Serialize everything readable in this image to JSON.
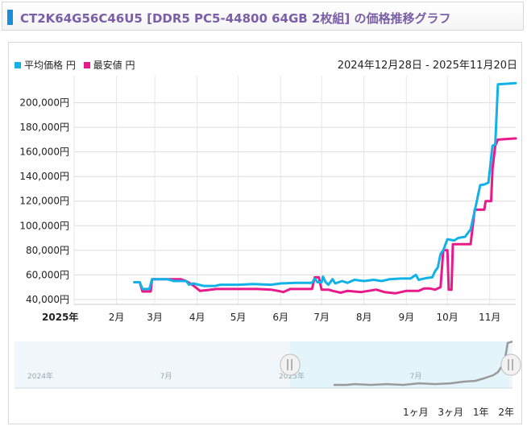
{
  "header": {
    "title": "CT2K64G56C46U5 [DDR5 PC5-44800 64GB 2枚組] の価格推移グラフ"
  },
  "legend": {
    "items": [
      {
        "label": "平均価格 円",
        "color": "#12b2e8"
      },
      {
        "label": "最安値 円",
        "color": "#e8198a"
      }
    ]
  },
  "date_range": "2024年12月28日 - 2025年11月20日",
  "range_buttons": [
    "1ヶ月",
    "3ヶ月",
    "1年",
    "2年"
  ],
  "navigator": {
    "labels": [
      "2024年",
      "7月",
      "2025年",
      "7月"
    ],
    "line_color": "#9a9a9a",
    "selection_color": "#e3f4fb"
  },
  "chart_data": {
    "type": "line",
    "ylim": [
      36000,
      222000
    ],
    "yticks": [
      40000,
      60000,
      80000,
      100000,
      120000,
      140000,
      160000,
      180000,
      200000
    ],
    "ytick_labels": [
      "40,000円",
      "60,000円",
      "80,000円",
      "100,000円",
      "120,000円",
      "140,000円",
      "160,000円",
      "180,000円",
      "200,000円"
    ],
    "xlim": [
      "2025-01-01",
      "2025-11-20"
    ],
    "xticks": [
      {
        "label": "2025年",
        "date": "2025-01-01",
        "bold": true
      },
      {
        "label": "2月",
        "date": "2025-02-01"
      },
      {
        "label": "3月",
        "date": "2025-03-01"
      },
      {
        "label": "4月",
        "date": "2025-04-01"
      },
      {
        "label": "5月",
        "date": "2025-05-01"
      },
      {
        "label": "6月",
        "date": "2025-06-01"
      },
      {
        "label": "7月",
        "date": "2025-07-01"
      },
      {
        "label": "8月",
        "date": "2025-08-01"
      },
      {
        "label": "9月",
        "date": "2025-09-01"
      },
      {
        "label": "10月",
        "date": "2025-10-01"
      },
      {
        "label": "11月",
        "date": "2025-11-01"
      }
    ],
    "grid": true,
    "legend_position": "top-left",
    "series": [
      {
        "name": "平均価格 円",
        "color": "#12b2e8",
        "points": [
          [
            "2025-02-14",
            54000
          ],
          [
            "2025-02-18",
            54000
          ],
          [
            "2025-02-20",
            48500
          ],
          [
            "2025-02-25",
            48500
          ],
          [
            "2025-02-27",
            56500
          ],
          [
            "2025-03-10",
            56500
          ],
          [
            "2025-03-15",
            55000
          ],
          [
            "2025-03-24",
            55000
          ],
          [
            "2025-03-26",
            52000
          ],
          [
            "2025-03-29",
            53000
          ],
          [
            "2025-04-02",
            52000
          ],
          [
            "2025-04-06",
            51000
          ],
          [
            "2025-04-14",
            51000
          ],
          [
            "2025-04-18",
            52000
          ],
          [
            "2025-05-01",
            52000
          ],
          [
            "2025-05-12",
            52500
          ],
          [
            "2025-05-25",
            52000
          ],
          [
            "2025-06-01",
            53000
          ],
          [
            "2025-06-12",
            53500
          ],
          [
            "2025-06-24",
            53500
          ],
          [
            "2025-06-26",
            57000
          ],
          [
            "2025-06-28",
            54000
          ],
          [
            "2025-07-01",
            54000
          ],
          [
            "2025-07-02",
            58500
          ],
          [
            "2025-07-04",
            54000
          ],
          [
            "2025-07-06",
            52000
          ],
          [
            "2025-07-09",
            56500
          ],
          [
            "2025-07-11",
            53000
          ],
          [
            "2025-07-16",
            55000
          ],
          [
            "2025-07-20",
            53500
          ],
          [
            "2025-07-25",
            56000
          ],
          [
            "2025-08-01",
            55000
          ],
          [
            "2025-08-08",
            56000
          ],
          [
            "2025-08-14",
            55000
          ],
          [
            "2025-08-20",
            56500
          ],
          [
            "2025-08-28",
            57000
          ],
          [
            "2025-09-04",
            57000
          ],
          [
            "2025-09-08",
            60000
          ],
          [
            "2025-09-10",
            56000
          ],
          [
            "2025-09-16",
            57500
          ],
          [
            "2025-09-20",
            58000
          ],
          [
            "2025-09-22",
            63000
          ],
          [
            "2025-09-24",
            66000
          ],
          [
            "2025-09-26",
            77000
          ],
          [
            "2025-09-28",
            80000
          ],
          [
            "2025-10-01",
            89000
          ],
          [
            "2025-10-06",
            88000
          ],
          [
            "2025-10-09",
            90000
          ],
          [
            "2025-10-14",
            91000
          ],
          [
            "2025-10-18",
            97000
          ],
          [
            "2025-10-21",
            112000
          ],
          [
            "2025-10-25",
            133000
          ],
          [
            "2025-10-28",
            133500
          ],
          [
            "2025-10-31",
            135000
          ],
          [
            "2025-11-01",
            145000
          ],
          [
            "2025-11-03",
            165000
          ],
          [
            "2025-11-05",
            166000
          ],
          [
            "2025-11-07",
            215000
          ],
          [
            "2025-11-20",
            216000
          ]
        ]
      },
      {
        "name": "最安値 円",
        "color": "#e8198a",
        "points": [
          [
            "2025-02-14",
            54000
          ],
          [
            "2025-02-18",
            54000
          ],
          [
            "2025-02-20",
            46500
          ],
          [
            "2025-02-26",
            46500
          ],
          [
            "2025-02-27",
            56500
          ],
          [
            "2025-03-20",
            56500
          ],
          [
            "2025-03-24",
            55000
          ],
          [
            "2025-03-29",
            51500
          ],
          [
            "2025-04-03",
            47000
          ],
          [
            "2025-04-08",
            47500
          ],
          [
            "2025-04-15",
            48500
          ],
          [
            "2025-05-01",
            48500
          ],
          [
            "2025-05-15",
            48500
          ],
          [
            "2025-05-25",
            48000
          ],
          [
            "2025-05-30",
            47000
          ],
          [
            "2025-06-03",
            46000
          ],
          [
            "2025-06-08",
            48500
          ],
          [
            "2025-06-24",
            48500
          ],
          [
            "2025-06-26",
            58000
          ],
          [
            "2025-06-29",
            58000
          ],
          [
            "2025-07-01",
            48000
          ],
          [
            "2025-07-06",
            48000
          ],
          [
            "2025-07-09",
            47000
          ],
          [
            "2025-07-15",
            45500
          ],
          [
            "2025-07-20",
            47000
          ],
          [
            "2025-07-30",
            46000
          ],
          [
            "2025-08-10",
            48000
          ],
          [
            "2025-08-16",
            46000
          ],
          [
            "2025-08-24",
            45000
          ],
          [
            "2025-09-01",
            47000
          ],
          [
            "2025-09-10",
            47000
          ],
          [
            "2025-09-14",
            49000
          ],
          [
            "2025-09-18",
            49000
          ],
          [
            "2025-09-22",
            48000
          ],
          [
            "2025-09-26",
            50000
          ],
          [
            "2025-09-28",
            80000
          ],
          [
            "2025-10-01",
            80000
          ],
          [
            "2025-10-02",
            48000
          ],
          [
            "2025-10-04",
            48000
          ],
          [
            "2025-10-05",
            85000
          ],
          [
            "2025-10-18",
            85000
          ],
          [
            "2025-10-21",
            113000
          ],
          [
            "2025-10-28",
            113000
          ],
          [
            "2025-10-29",
            120000
          ],
          [
            "2025-11-02",
            120000
          ],
          [
            "2025-11-03",
            146000
          ],
          [
            "2025-11-05",
            165000
          ],
          [
            "2025-11-07",
            170000
          ],
          [
            "2025-11-20",
            171000
          ]
        ]
      }
    ]
  }
}
